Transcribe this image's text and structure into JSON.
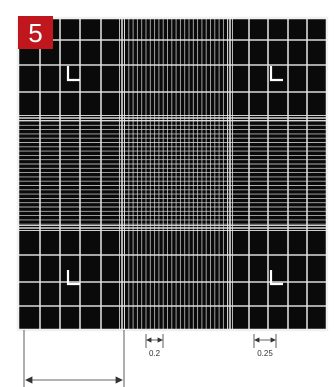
{
  "figure": {
    "badge_number": "5",
    "badge_color": "#c0161e",
    "dimension_labels": [
      "0.2",
      "0.25"
    ]
  },
  "colors": {
    "background": "#ffffff",
    "grid_background": "#0a0a0a",
    "grid_lines": "#e6e6e6",
    "dimension_ink": "#333333"
  }
}
